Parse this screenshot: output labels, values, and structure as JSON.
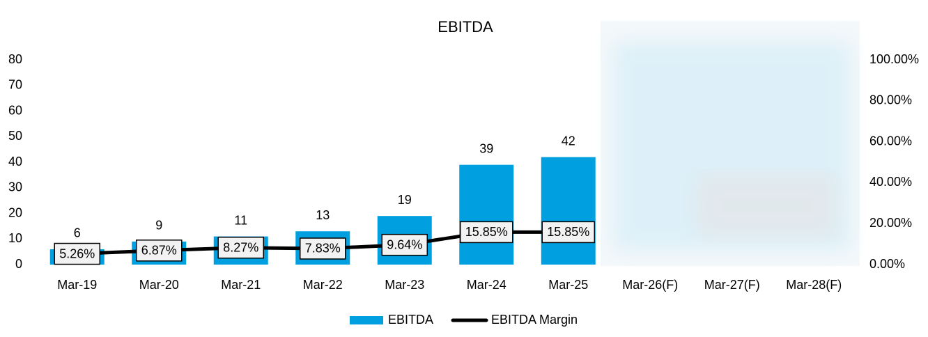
{
  "chart_data": {
    "type": "bar-line",
    "title": "EBITDA",
    "categories": [
      "Mar-19",
      "Mar-20",
      "Mar-21",
      "Mar-22",
      "Mar-23",
      "Mar-24",
      "Mar-25",
      "Mar-26(F)",
      "Mar-27(F)",
      "Mar-28(F)"
    ],
    "series": [
      {
        "name": "EBITDA",
        "type": "bar",
        "color": "#00a0e0",
        "values": [
          6,
          9,
          11,
          13,
          19,
          39,
          42,
          null,
          null,
          null
        ]
      },
      {
        "name": "EBITDA Margin",
        "type": "line",
        "axis": "y2",
        "color": "#000000",
        "values": [
          5.26,
          6.87,
          8.27,
          7.83,
          9.64,
          15.85,
          15.85,
          null,
          null,
          null
        ],
        "value_labels": [
          "5.26%",
          "6.87%",
          "8.27%",
          "7.83%",
          "9.64%",
          "15.85%",
          "15.85%",
          null,
          null,
          null
        ]
      }
    ],
    "ylim": [
      0,
      80
    ],
    "yticks": [
      0,
      10,
      20,
      30,
      40,
      50,
      60,
      70,
      80
    ],
    "y2lim": [
      0,
      100
    ],
    "y2ticks": [
      {
        "value": 0,
        "label": "0.00%"
      },
      {
        "value": 20,
        "label": "20.00%"
      },
      {
        "value": 40,
        "label": "40.00%"
      },
      {
        "value": 60,
        "label": "60.00%"
      },
      {
        "value": 80,
        "label": "80.00%"
      },
      {
        "value": 100,
        "label": "100.00%"
      }
    ],
    "legend": "bottom"
  }
}
